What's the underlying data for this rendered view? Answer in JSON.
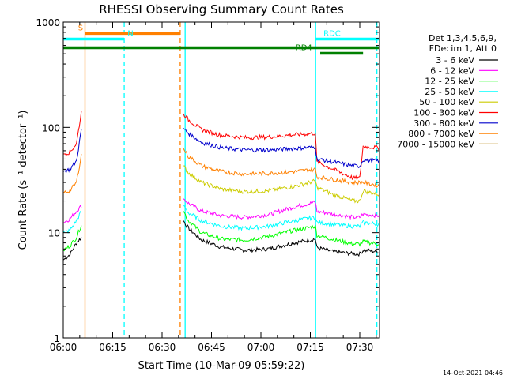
{
  "chart_data": {
    "type": "line",
    "title": "RHESSI Observing Summary Count Rates",
    "xlabel": "Start Time (10-Mar-09 05:59:22)",
    "ylabel": "Count Rate (s⁻¹ detector⁻¹)",
    "x_unit": "minutes",
    "xlim": [
      0,
      96
    ],
    "ylim": [
      1,
      1000
    ],
    "y_scale": "log",
    "x_ticks": [
      {
        "value": 0,
        "label": "06:00"
      },
      {
        "value": 15,
        "label": "06:15"
      },
      {
        "value": 30,
        "label": "06:30"
      },
      {
        "value": 45,
        "label": "06:45"
      },
      {
        "value": 60,
        "label": "07:00"
      },
      {
        "value": 75,
        "label": "07:15"
      },
      {
        "value": 90,
        "label": "07:30"
      }
    ],
    "y_ticks": [
      {
        "value": 1,
        "label": "1"
      },
      {
        "value": 10,
        "label": "10"
      },
      {
        "value": 100,
        "label": "100"
      },
      {
        "value": 1000,
        "label": "1000"
      }
    ],
    "legend_header": [
      "Det 1,3,4,5,6,9,",
      "FDecim 1, Att 0"
    ],
    "legend_position": "right",
    "timestamp": "14-Oct-2021 04:46",
    "series": [
      {
        "name": "3 - 6 keV",
        "color": "#000000",
        "x": [
          0,
          2,
          4,
          5.5,
          6.2,
          6.8,
          36.5,
          38,
          42,
          48,
          55,
          62,
          70,
          76.5,
          77,
          82,
          88,
          90,
          91,
          96
        ],
        "y": [
          5.5,
          6.2,
          8,
          9,
          null,
          null,
          13,
          11,
          8.5,
          7.3,
          6.8,
          7,
          8,
          8.7,
          7.2,
          6.6,
          6.3,
          6.3,
          6.8,
          6.6
        ]
      },
      {
        "name": "6 - 12 keV",
        "color": "#ff00ff",
        "x": [
          0,
          2,
          4,
          5.5,
          6.2,
          6.8,
          36.5,
          38,
          42,
          48,
          55,
          62,
          70,
          76.5,
          77,
          82,
          88,
          90,
          91,
          96
        ],
        "y": [
          12.5,
          13.5,
          16,
          18,
          null,
          null,
          21,
          19,
          16,
          14.5,
          14,
          14.8,
          17.5,
          19.5,
          16,
          15,
          14,
          14,
          15,
          14.5
        ]
      },
      {
        "name": "12 - 25 keV",
        "color": "#00ff00",
        "x": [
          0,
          2,
          4,
          5.5,
          6.2,
          6.8,
          36.5,
          38,
          42,
          48,
          55,
          62,
          70,
          76.5,
          77,
          82,
          88,
          90,
          91,
          96
        ],
        "y": [
          6.8,
          7.5,
          9,
          12,
          null,
          null,
          16,
          13,
          10,
          8.7,
          8.5,
          9.2,
          10.5,
          11.5,
          9.5,
          8.6,
          7.8,
          7.8,
          8.2,
          7.8
        ]
      },
      {
        "name": "25 - 50 keV",
        "color": "#00ffff",
        "x": [
          0,
          2,
          4,
          5.5,
          6.2,
          6.8,
          36.5,
          38,
          42,
          48,
          55,
          62,
          70,
          76.5,
          77,
          82,
          88,
          90,
          91,
          96
        ],
        "y": [
          10,
          10.5,
          13,
          16,
          null,
          null,
          18,
          15.5,
          13,
          11.5,
          11,
          11.5,
          13,
          14,
          12.5,
          12,
          11.5,
          11.5,
          12.5,
          12
        ]
      },
      {
        "name": "50 - 100 keV",
        "color": "#cccc00",
        "x": [
          0,
          2,
          4,
          5.5,
          6.2,
          6.8,
          36.5,
          38,
          42,
          48,
          55,
          62,
          70,
          76.5,
          77,
          82,
          88,
          90,
          91,
          96
        ],
        "y": [
          null,
          null,
          null,
          null,
          null,
          null,
          43,
          37,
          30,
          26,
          24.5,
          25,
          27.5,
          31,
          27,
          23,
          20,
          20,
          25,
          23
        ]
      },
      {
        "name": "100 - 300 keV",
        "color": "#ff0000",
        "x": [
          0,
          2,
          4,
          5.5,
          6.2,
          6.8,
          36.5,
          38,
          42,
          48,
          55,
          62,
          70,
          76.5,
          77,
          82,
          88,
          90,
          91,
          96
        ],
        "y": [
          56,
          58,
          70,
          140,
          null,
          null,
          135,
          118,
          95,
          84,
          80,
          81,
          85,
          88,
          47,
          40,
          33,
          33,
          66,
          64
        ]
      },
      {
        "name": "300 - 800 keV",
        "color": "#0000cc",
        "x": [
          0,
          2,
          4,
          5.5,
          6.2,
          6.8,
          36.5,
          38,
          42,
          48,
          55,
          62,
          70,
          76.5,
          77,
          82,
          88,
          90,
          91,
          96
        ],
        "y": [
          38,
          40,
          48,
          95,
          null,
          null,
          98,
          88,
          72,
          64,
          61,
          61,
          63,
          65,
          50,
          47,
          43,
          43,
          49,
          48
        ]
      },
      {
        "name": "800 - 7000 keV",
        "color": "#ff8000",
        "x": [
          0,
          2,
          4,
          5.5,
          6.2,
          6.8,
          36.5,
          38,
          42,
          48,
          55,
          62,
          70,
          76.5,
          77,
          82,
          88,
          90,
          91,
          96
        ],
        "y": [
          24,
          25,
          30,
          55,
          null,
          null,
          63,
          53,
          43,
          38,
          36,
          36.5,
          38,
          40,
          34,
          32,
          30,
          30,
          30,
          28
        ]
      },
      {
        "name": "7000 - 15000 keV",
        "color": "#b8860b",
        "x": [
          0,
          2,
          4,
          5.5,
          6.2,
          6.8,
          36.5,
          38,
          42,
          48,
          55,
          62,
          70,
          76.5,
          77,
          82,
          88,
          90,
          91,
          96
        ],
        "y": [
          null,
          null,
          null,
          null,
          null,
          null,
          null,
          null,
          null,
          null,
          null,
          null,
          null,
          null,
          null,
          null,
          null,
          null,
          null,
          null
        ]
      }
    ],
    "flag_bars": [
      {
        "label": "S",
        "color": "#ff8000",
        "x_start": 6.6,
        "x_end": 35.5,
        "y_value": 780,
        "label_x": 4.5
      },
      {
        "label": "N",
        "color": "#00ffff",
        "x_start": 0,
        "x_end": 18.5,
        "y_value": 690,
        "label_x": 19.5
      },
      {
        "label": "",
        "color": "#008000",
        "x_start": 0,
        "x_end": 96,
        "y_value": 570,
        "label_x": null
      },
      {
        "label": "RDC",
        "color": "#00ffff",
        "x_start": 76.5,
        "x_end": 96,
        "y_value": 690,
        "label_x": 79
      },
      {
        "label": "RD4",
        "color": "#008000",
        "x_start": 78,
        "x_end": 91,
        "y_value": 505,
        "label_x": 70.5
      }
    ],
    "vertical_markers": [
      {
        "x": 6.6,
        "color": "#ff8000",
        "style": "solid"
      },
      {
        "x": 35.5,
        "color": "#ff8000",
        "style": "dashed"
      },
      {
        "x": 18.5,
        "color": "#00ffff",
        "style": "dashed"
      },
      {
        "x": 37.0,
        "color": "#00ffff",
        "style": "solid"
      },
      {
        "x": 76.6,
        "color": "#00ffff",
        "style": "solid"
      },
      {
        "x": 95.2,
        "color": "#00ffff",
        "style": "dashed"
      }
    ]
  }
}
